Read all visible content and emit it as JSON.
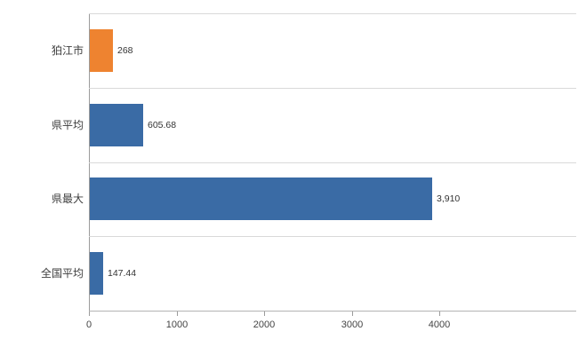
{
  "chart_data": {
    "type": "bar",
    "orientation": "horizontal",
    "title": "",
    "xlabel": "",
    "ylabel": "",
    "categories": [
      "狛江市",
      "県平均",
      "県最大",
      "全国平均"
    ],
    "values": [
      268,
      605.68,
      3910,
      147.44
    ],
    "value_labels": [
      "268",
      "605.68",
      "3,910",
      "147.44"
    ],
    "bar_colors": [
      "#ee8330",
      "#3a6ba5",
      "#3a6ba5",
      "#3a6ba5"
    ],
    "x_ticks": [
      0,
      1000,
      2000,
      3000,
      4000
    ],
    "x_tick_labels": [
      "0",
      "1000",
      "2000",
      "3000",
      "4000"
    ],
    "xlim": [
      0,
      5560
    ],
    "grid": "horizontal category boundaries",
    "legend": "none",
    "colors": {
      "accent_orange": "#ee8330",
      "accent_blue": "#3a6ba5",
      "gridline": "#d9d9d9",
      "axis": "#9b9b9b",
      "text": "#3d3d3d"
    }
  }
}
